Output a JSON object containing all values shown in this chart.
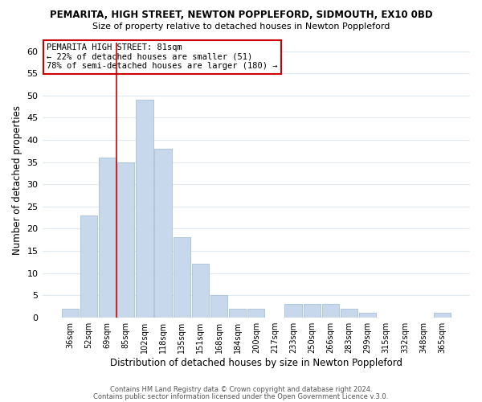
{
  "title": "PEMARITA, HIGH STREET, NEWTON POPPLEFORD, SIDMOUTH, EX10 0BD",
  "subtitle": "Size of property relative to detached houses in Newton Poppleford",
  "xlabel": "Distribution of detached houses by size in Newton Poppleford",
  "ylabel": "Number of detached properties",
  "bar_color": "#c8d8ec",
  "bar_edge_color": "#a8c0d8",
  "categories": [
    "36sqm",
    "52sqm",
    "69sqm",
    "85sqm",
    "102sqm",
    "118sqm",
    "135sqm",
    "151sqm",
    "168sqm",
    "184sqm",
    "200sqm",
    "217sqm",
    "233sqm",
    "250sqm",
    "266sqm",
    "283sqm",
    "299sqm",
    "315sqm",
    "332sqm",
    "348sqm",
    "365sqm"
  ],
  "values": [
    2,
    23,
    36,
    35,
    49,
    38,
    18,
    12,
    5,
    2,
    2,
    0,
    3,
    3,
    3,
    2,
    1,
    0,
    0,
    0,
    1
  ],
  "ylim": [
    0,
    62
  ],
  "yticks": [
    0,
    5,
    10,
    15,
    20,
    25,
    30,
    35,
    40,
    45,
    50,
    55,
    60
  ],
  "vline_x": 3.0,
  "vline_color": "#cc0000",
  "annotation_title": "PEMARITA HIGH STREET: 81sqm",
  "annotation_line1": "← 22% of detached houses are smaller (51)",
  "annotation_line2": "78% of semi-detached houses are larger (180) →",
  "footer1": "Contains HM Land Registry data © Crown copyright and database right 2024.",
  "footer2": "Contains public sector information licensed under the Open Government Licence v.3.0.",
  "background_color": "#ffffff",
  "grid_color": "#e0e8f0"
}
